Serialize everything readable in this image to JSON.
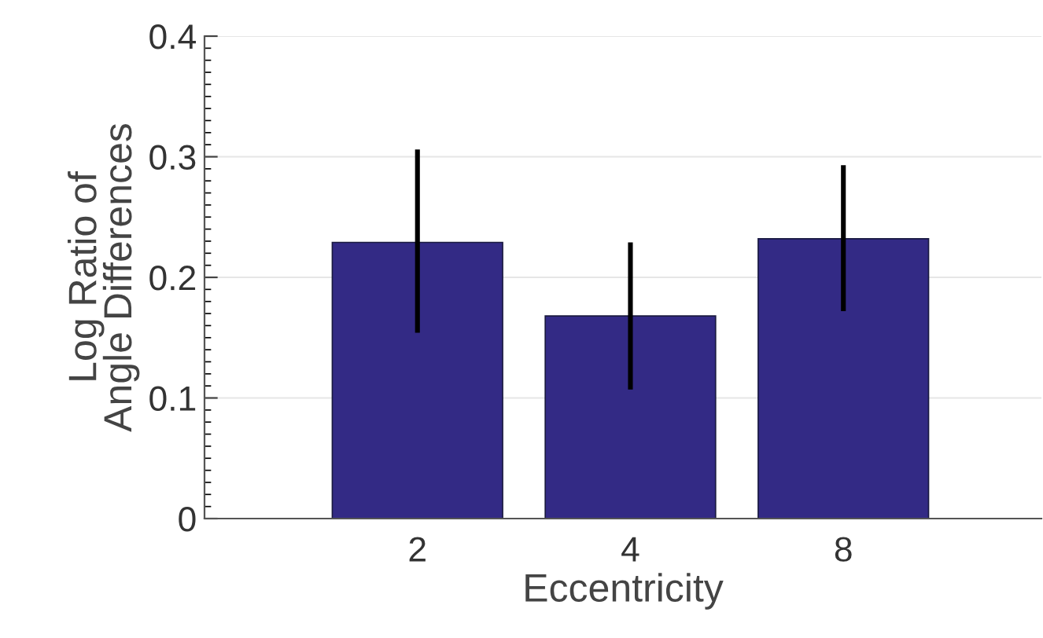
{
  "chart_data": {
    "type": "bar",
    "xlabel": "Eccentricity",
    "ylabel": "Log Ratio of\nAngle Differences",
    "categories": [
      "2",
      "4",
      "8"
    ],
    "values": [
      0.229,
      0.168,
      0.232
    ],
    "errors": [
      [
        0.154,
        0.306
      ],
      [
        0.107,
        0.229
      ],
      [
        0.172,
        0.293
      ]
    ],
    "color": "#332a85",
    "ylim": [
      0,
      0.4
    ],
    "yticks": [
      0,
      0.1,
      0.2,
      0.3,
      0.4
    ],
    "grid": "y"
  }
}
